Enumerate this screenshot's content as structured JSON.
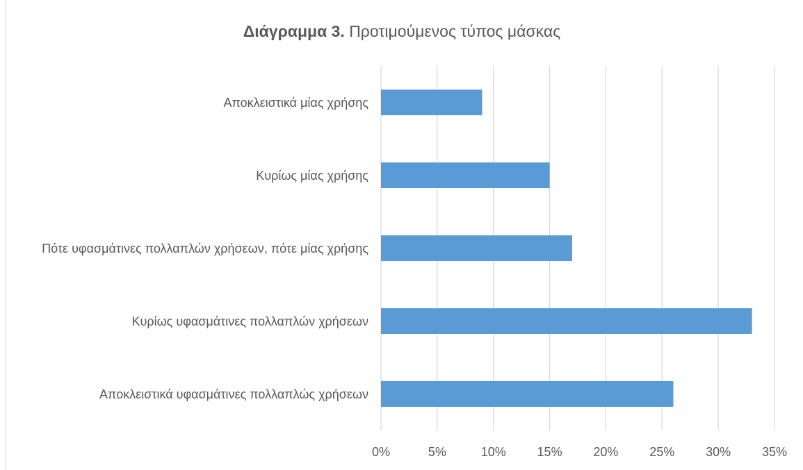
{
  "chart_data": {
    "type": "bar",
    "orientation": "horizontal",
    "title": [
      "Διάγραμμα 3.",
      "Προτιμούμενος τύπος μάσκας"
    ],
    "categories": [
      "Αποκλειστικά μίας χρήσης",
      "Κυρίως μίας χρήσης",
      "Πότε υφασμάτινες πολλαπλών χρήσεων, πότε μίας χρήσης",
      "Κυρίως υφασμάτινες πολλαπλών χρήσεων",
      "Αποκλειστικά υφασμάτινες πολλαπλώς χρήσεων"
    ],
    "values": [
      9,
      15,
      17,
      33,
      26
    ],
    "color": "#5b9bd5",
    "xlim": [
      0,
      35
    ],
    "xticks": [
      {
        "value": 0,
        "label": "0%"
      },
      {
        "value": 5,
        "label": "5%"
      },
      {
        "value": 10,
        "label": "10%"
      },
      {
        "value": 15,
        "label": "15%"
      },
      {
        "value": 20,
        "label": "20%"
      },
      {
        "value": 25,
        "label": "25%"
      },
      {
        "value": 30,
        "label": "30%"
      },
      {
        "value": 35,
        "label": "35%"
      }
    ],
    "grid": true
  }
}
